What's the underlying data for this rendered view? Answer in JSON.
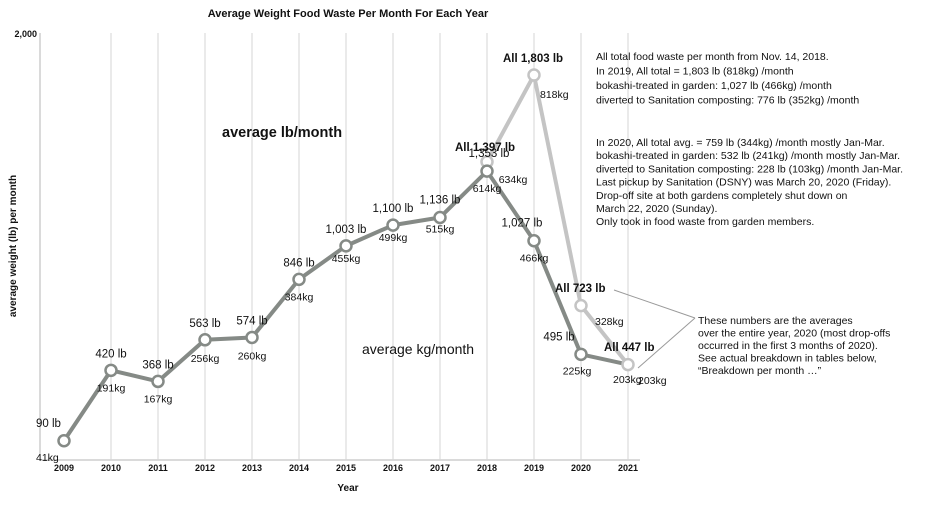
{
  "chart_data": {
    "type": "line",
    "title": "Average Weight Food Waste Per Month For Each Year",
    "xlabel": "Year",
    "ylabel": "average weight (lb) per month",
    "ylim": [
      0,
      2000
    ],
    "y_ticks": [
      "2,000"
    ],
    "grid": "vertical",
    "categories": [
      "2009",
      "2010",
      "2011",
      "2012",
      "2013",
      "2014",
      "2015",
      "2016",
      "2017",
      "2018",
      "2019",
      "2020",
      "2021"
    ],
    "main_series": {
      "values": [
        90,
        420,
        368,
        563,
        574,
        846,
        1003,
        1100,
        1136,
        1353,
        1027,
        495,
        447
      ],
      "lb_labels": [
        "90 lb",
        "420 lb",
        "368 lb",
        "563 lb",
        "574 lb",
        "846 lb",
        "1,003 lb",
        "1,100 lb",
        "1,136 lb",
        "1,353 lb",
        "1,027 lb",
        "495 lb",
        "All 447 lb"
      ],
      "kg_labels": [
        "41kg",
        "191kg",
        "167kg",
        "256kg",
        "260kg",
        "384kg",
        "455kg",
        "499kg",
        "515kg",
        "614kg",
        "466kg",
        "225kg",
        "203kg"
      ],
      "color": "#858a86"
    },
    "all_series": {
      "categories": [
        "2018",
        "2019",
        "2020",
        "2021"
      ],
      "values": [
        1397,
        1803,
        723,
        447
      ],
      "lb_labels": [
        "All 1,397 lb",
        "All 1,803 lb",
        "All 723 lb"
      ],
      "kg_labels": [
        "634kg",
        "818kg",
        "328kg",
        "203kg"
      ],
      "color": "#c4c4c4"
    },
    "series_labels": {
      "lb": "average lb/month",
      "kg": "average kg/month"
    },
    "annotations": {
      "block1": [
        "All total food waste per month from Nov. 14, 2018.",
        "In 2019, All total = 1,803 lb (818kg) /month",
        "bokashi-treated in garden: 1,027 lb (466kg) /month",
        "diverted to Sanitation composting: 776 lb (352kg) /month"
      ],
      "block2": [
        "In 2020, All total avg. = 759 lb (344kg) /month mostly Jan-Mar.",
        "bokashi-treated in garden: 532 lb (241kg) /month mostly Jan-Mar.",
        "diverted to Sanitation composting: 228 lb (103kg) /month Jan-Mar.",
        "Last pickup by Sanitation (DSNY) was March 20, 2020 (Friday).",
        "Drop-off site at both gardens completely shut down on",
        "  March 22, 2020 (Sunday).",
        "Only took in food waste from garden members."
      ],
      "block3": [
        "These numbers are the averages",
        " over the entire year, 2020 (most drop-offs",
        " occurred in the first 3 months of 2020).",
        "See actual breakdown in tables below,",
        " “Breakdown per month …”"
      ]
    }
  }
}
